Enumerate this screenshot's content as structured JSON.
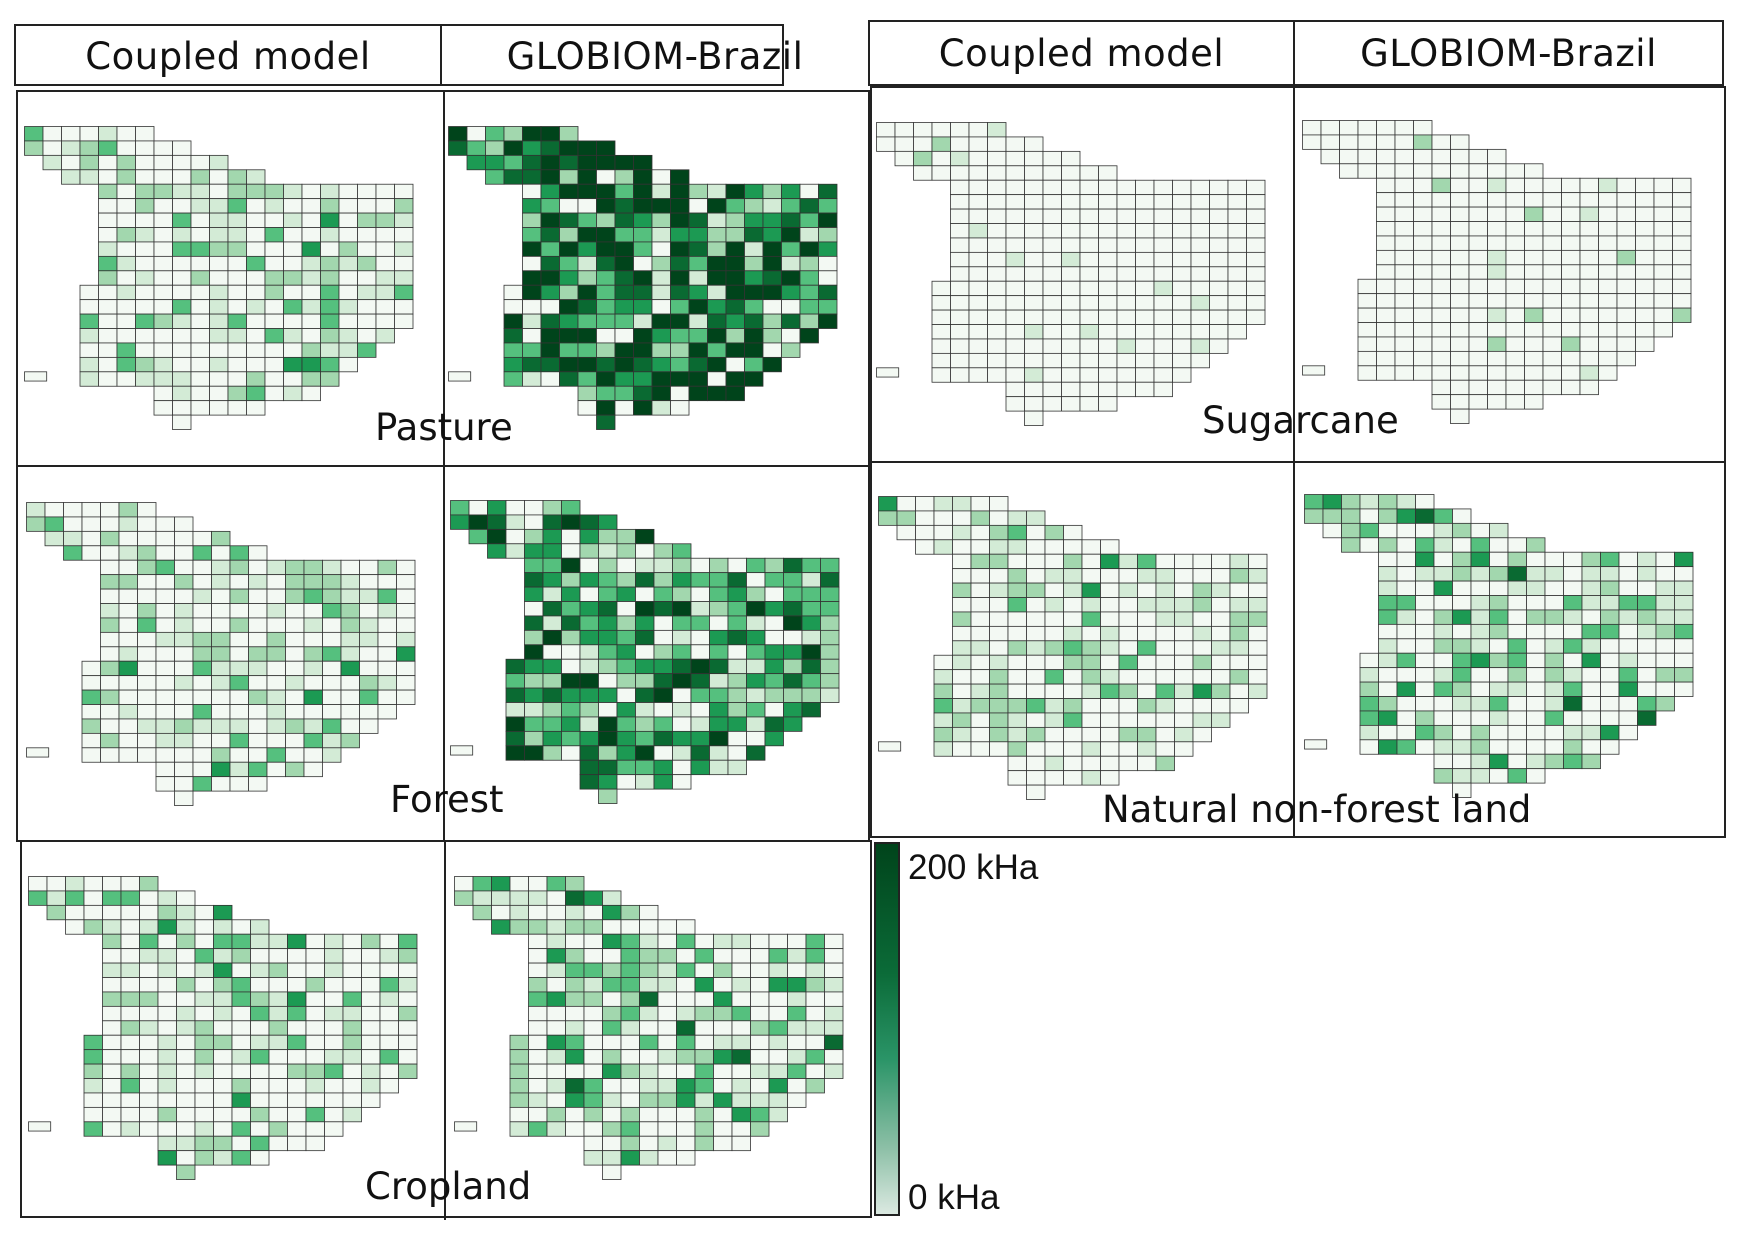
{
  "column_headers": [
    "Coupled model",
    "GLOBIOM-Brazil",
    "Coupled model",
    "GLOBIOM-Brazil"
  ],
  "panels": [
    {
      "label": "Pasture",
      "coupled_intensity": "low",
      "globiom_intensity": "very high"
    },
    {
      "label": "Sugarcane",
      "coupled_intensity": "minimal",
      "globiom_intensity": "minimal"
    },
    {
      "label": "Forest",
      "coupled_intensity": "low",
      "globiom_intensity": "high"
    },
    {
      "label": "Natural non-forest land",
      "coupled_intensity": "low",
      "globiom_intensity": "moderate"
    },
    {
      "label": "Cropland",
      "coupled_intensity": "low",
      "globiom_intensity": "moderate"
    }
  ],
  "legend": {
    "max_label": "200 kHa",
    "min_label": "0 kHa",
    "color_low": "#eef7ee",
    "color_mid": "#2fa86a",
    "color_high": "#00441b"
  }
}
